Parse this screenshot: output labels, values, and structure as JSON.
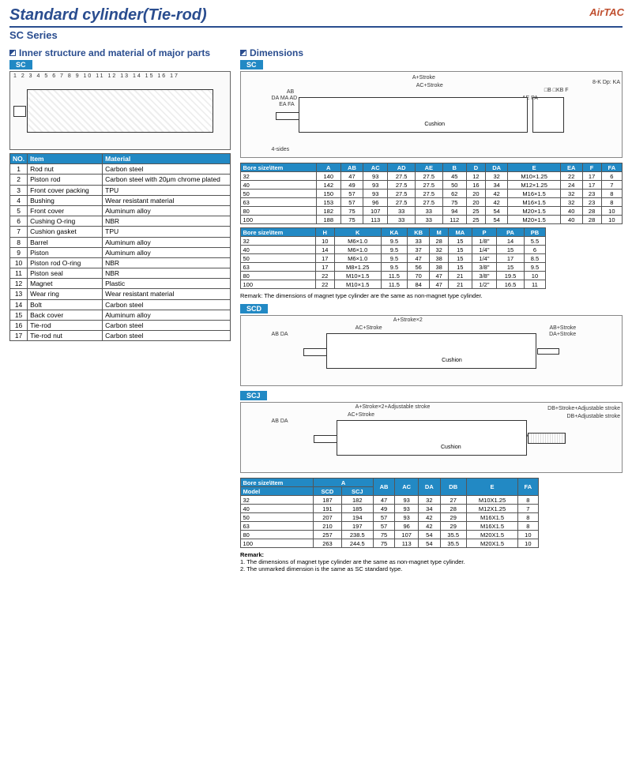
{
  "title": "Standard cylinder(Tie-rod)",
  "subtitle": "SC Series",
  "brand": "AirTAC",
  "s1": {
    "hdr": "Inner structure and material of major parts",
    "tag": "SC",
    "callouts": "1 2 3 4 5 6 7 8 9 10 11 12 13 14 15 16 17",
    "cols": [
      "NO.",
      "Item",
      "Material"
    ],
    "rows": [
      [
        "1",
        "Rod nut",
        "Carbon steel"
      ],
      [
        "2",
        "Piston rod",
        "Carbon steel with 20μm chrome plated"
      ],
      [
        "3",
        "Front cover packing",
        "TPU"
      ],
      [
        "4",
        "Bushing",
        "Wear resistant material"
      ],
      [
        "5",
        "Front cover",
        "Aluminum alloy"
      ],
      [
        "6",
        "Cushing O-ring",
        "NBR"
      ],
      [
        "7",
        "Cushion gasket",
        "TPU"
      ],
      [
        "8",
        "Barrel",
        "Aluminum alloy"
      ],
      [
        "9",
        "Piston",
        "Aluminum alloy"
      ],
      [
        "10",
        "Piston rod O-ring",
        "NBR"
      ],
      [
        "11",
        "Piston seal",
        "NBR"
      ],
      [
        "12",
        "Magnet",
        "Plastic"
      ],
      [
        "13",
        "Wear ring",
        "Wear resistant material"
      ],
      [
        "14",
        "Bolt",
        "Carbon steel"
      ],
      [
        "15",
        "Back cover",
        "Aluminum alloy"
      ],
      [
        "16",
        "Tie-rod",
        "Carbon steel"
      ],
      [
        "17",
        "Tie-rod nut",
        "Carbon steel"
      ]
    ]
  },
  "dim": {
    "hdr": "Dimensions",
    "tag": "SC",
    "labels": {
      "t1": "A+Stroke",
      "t2": "AC+Stroke",
      "cushion": "Cushion",
      "foursides": "4-sides",
      "holes": "8-K Dp: KA"
    },
    "t1cols": [
      "Bore size\\Item",
      "A",
      "AB",
      "AC",
      "AD",
      "AE",
      "B",
      "D",
      "DA",
      "E",
      "EA",
      "F",
      "FA"
    ],
    "t1": [
      [
        "32",
        "140",
        "47",
        "93",
        "27.5",
        "27.5",
        "45",
        "12",
        "32",
        "M10×1.25",
        "22",
        "17",
        "6"
      ],
      [
        "40",
        "142",
        "49",
        "93",
        "27.5",
        "27.5",
        "50",
        "16",
        "34",
        "M12×1.25",
        "24",
        "17",
        "7"
      ],
      [
        "50",
        "150",
        "57",
        "93",
        "27.5",
        "27.5",
        "62",
        "20",
        "42",
        "M16×1.5",
        "32",
        "23",
        "8"
      ],
      [
        "63",
        "153",
        "57",
        "96",
        "27.5",
        "27.5",
        "75",
        "20",
        "42",
        "M16×1.5",
        "32",
        "23",
        "8"
      ],
      [
        "80",
        "182",
        "75",
        "107",
        "33",
        "33",
        "94",
        "25",
        "54",
        "M20×1.5",
        "40",
        "28",
        "10"
      ],
      [
        "100",
        "188",
        "75",
        "113",
        "33",
        "33",
        "112",
        "25",
        "54",
        "M20×1.5",
        "40",
        "28",
        "10"
      ]
    ],
    "t2cols": [
      "Bore size\\Item",
      "H",
      "K",
      "KA",
      "KB",
      "M",
      "MA",
      "P",
      "PA",
      "PB"
    ],
    "t2": [
      [
        "32",
        "10",
        "M6×1.0",
        "9.5",
        "33",
        "28",
        "15",
        "1/8\"",
        "14",
        "5.5"
      ],
      [
        "40",
        "14",
        "M6×1.0",
        "9.5",
        "37",
        "32",
        "15",
        "1/4\"",
        "15",
        "6"
      ],
      [
        "50",
        "17",
        "M6×1.0",
        "9.5",
        "47",
        "38",
        "15",
        "1/4\"",
        "17",
        "8.5"
      ],
      [
        "63",
        "17",
        "M8×1.25",
        "9.5",
        "56",
        "38",
        "15",
        "3/8\"",
        "15",
        "9.5"
      ],
      [
        "80",
        "22",
        "M10×1.5",
        "11.5",
        "70",
        "47",
        "21",
        "3/8\"",
        "19.5",
        "10"
      ],
      [
        "100",
        "22",
        "M10×1.5",
        "11.5",
        "84",
        "47",
        "21",
        "1/2\"",
        "16.5",
        "11"
      ]
    ],
    "r1": "Remark: The dimensions of magnet type cylinder are the same as non-magnet type cylinder."
  },
  "scd": {
    "tag": "SCD",
    "t": "A+Stroke×2",
    "ac": "AC+Stroke",
    "ab": "AB+Stroke",
    "da": "DA+Stroke"
  },
  "scj": {
    "tag": "SCJ",
    "t": "A+Stroke×2+Adjustable stroke",
    "ac": "AC+Stroke",
    "db1": "DB+Stroke+Adjustable stroke",
    "db2": "DB+Adjustable stroke",
    "cols": [
      "Bore size\\Item",
      "A",
      "",
      "AB",
      "AC",
      "DA",
      "DB",
      "E",
      "FA"
    ],
    "sub": [
      "Model",
      "SCD",
      "SCJ",
      "",
      "",
      "",
      "",
      "",
      ""
    ],
    "rows": [
      [
        "32",
        "187",
        "182",
        "47",
        "93",
        "32",
        "27",
        "M10X1.25",
        "8"
      ],
      [
        "40",
        "191",
        "185",
        "49",
        "93",
        "34",
        "28",
        "M12X1.25",
        "7"
      ],
      [
        "50",
        "207",
        "194",
        "57",
        "93",
        "42",
        "29",
        "M16X1.5",
        "8"
      ],
      [
        "63",
        "210",
        "197",
        "57",
        "96",
        "42",
        "29",
        "M16X1.5",
        "8"
      ],
      [
        "80",
        "257",
        "238.5",
        "75",
        "107",
        "54",
        "35.5",
        "M20X1.5",
        "10"
      ],
      [
        "100",
        "263",
        "244.5",
        "75",
        "113",
        "54",
        "35.5",
        "M20X1.5",
        "10"
      ]
    ],
    "rh": "Remark:",
    "r1": "1. The dimensions of magnet type cylinder are the same as non-magnet type cylinder.",
    "r2": "2. The unmarked dimension is the same as SC standard type."
  }
}
